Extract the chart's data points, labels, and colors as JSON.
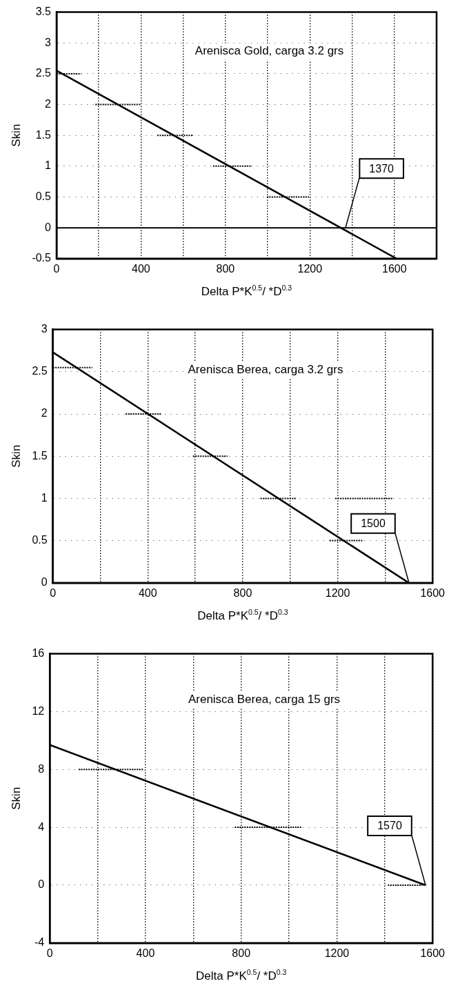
{
  "chart_data": [
    {
      "type": "line",
      "title": "Arenisca Gold, carga 3.2 grs",
      "xlabel": "Delta P*K$^{0.5}$/ *D$^{0.3}$",
      "ylabel": "Skin",
      "grid": true,
      "legend": false,
      "marker": "none",
      "xlim": [
        0,
        1800
      ],
      "xticks": [
        0,
        {
          "value": 200,
          "label": null
        },
        400,
        {
          "value": 600,
          "label": null
        },
        800,
        {
          "value": 1000,
          "label": null
        },
        1200,
        {
          "value": 1400,
          "label": null
        },
        1600
      ],
      "ylim": [
        -0.5,
        3.5
      ],
      "yticks": [
        -0.5,
        0,
        0.5,
        1,
        1.5,
        2,
        2.5,
        3,
        3.5
      ],
      "ref_lines": [
        {
          "axis": "y",
          "value": 0,
          "color": "#000000"
        }
      ],
      "annotations": [
        {
          "text": "1370",
          "x": 1370,
          "y": 0
        }
      ],
      "series": [
        {
          "color": "#000000",
          "x": [
            0,
            1610
          ],
          "values": [
            2.55,
            -0.5
          ]
        },
        {
          "color": "#000000",
          "line_style": "dotted",
          "x": [
            0,
            116
          ],
          "values": [
            2.5,
            2.5
          ]
        },
        {
          "color": "#000000",
          "line_style": "dotted",
          "x": [
            184,
            395
          ],
          "values": [
            2,
            2
          ]
        },
        {
          "color": "#000000",
          "line_style": "dotted",
          "x": [
            477,
            648
          ],
          "values": [
            1.5,
            1.5
          ]
        },
        {
          "color": "#000000",
          "line_style": "dotted",
          "x": [
            741,
            925
          ],
          "values": [
            1,
            1
          ]
        },
        {
          "color": "#000000",
          "line_style": "dotted",
          "x": [
            996,
            1196
          ],
          "values": [
            0.5,
            0.5
          ]
        }
      ]
    },
    {
      "type": "line",
      "title": "Arenisca Berea, carga 3.2 grs",
      "xlabel": "Delta P*K$^{0.5}$/ *D$^{0.3}$",
      "ylabel": "Skin",
      "grid": true,
      "legend": false,
      "marker": "none",
      "xlim": [
        0,
        1600
      ],
      "xticks": [
        0,
        {
          "value": 200,
          "label": null
        },
        400,
        {
          "value": 600,
          "label": null
        },
        800,
        {
          "value": 1000,
          "label": null
        },
        1200,
        {
          "value": 1400,
          "label": null
        },
        1600
      ],
      "ylim": [
        0,
        3
      ],
      "yticks": [
        0,
        0.5,
        1,
        1.5,
        2,
        2.5,
        3
      ],
      "annotations": [
        {
          "text": "1500",
          "x": 1500,
          "y": 0
        }
      ],
      "series": [
        {
          "color": "#000000",
          "x": [
            0,
            1500
          ],
          "values": [
            2.73,
            0
          ]
        },
        {
          "color": "#000000",
          "line_style": "dotted",
          "x": [
            0,
            166
          ],
          "values": [
            2.55,
            2.55
          ]
        },
        {
          "color": "#000000",
          "line_style": "dotted",
          "x": [
            307,
            458
          ],
          "values": [
            2,
            2
          ]
        },
        {
          "color": "#000000",
          "line_style": "dotted",
          "x": [
            590,
            736
          ],
          "values": [
            1.5,
            1.5
          ]
        },
        {
          "color": "#000000",
          "line_style": "dotted",
          "x": [
            875,
            1028
          ],
          "values": [
            1,
            1
          ]
        },
        {
          "color": "#000000",
          "line_style": "dotted",
          "x": [
            1190,
            1431
          ],
          "values": [
            1,
            1
          ]
        },
        {
          "color": "#000000",
          "line_style": "dotted",
          "x": [
            1166,
            1305
          ],
          "values": [
            0.5,
            0.5
          ]
        }
      ]
    },
    {
      "type": "line",
      "title": "Arenisca Berea, carga 15 grs",
      "xlabel": "Delta P*K$^{0.5}$/ *D$^{0.3}$",
      "ylabel": "Skin",
      "grid": true,
      "legend": false,
      "marker": "none",
      "xlim": [
        0,
        1600
      ],
      "xticks": [
        0,
        {
          "value": 200,
          "label": null
        },
        400,
        {
          "value": 600,
          "label": null
        },
        800,
        {
          "value": 1000,
          "label": null
        },
        1200,
        {
          "value": 1400,
          "label": null
        },
        1600
      ],
      "ylim": [
        -4,
        16
      ],
      "yticks": [
        -4,
        0,
        4,
        8,
        12,
        16
      ],
      "annotations": [
        {
          "text": "1570",
          "x": 1570,
          "y": 0
        }
      ],
      "series": [
        {
          "color": "#000000",
          "x": [
            0,
            1570
          ],
          "values": [
            9.7,
            0
          ]
        },
        {
          "color": "#000000",
          "line_style": "dotted",
          "x": [
            121,
            393
          ],
          "values": [
            8,
            8
          ]
        },
        {
          "color": "#000000",
          "line_style": "dotted",
          "x": [
            773,
            1051
          ],
          "values": [
            4,
            4
          ]
        },
        {
          "color": "#000000",
          "line_style": "dotted",
          "x": [
            1413,
            1558
          ],
          "values": [
            0,
            0
          ]
        }
      ]
    }
  ]
}
